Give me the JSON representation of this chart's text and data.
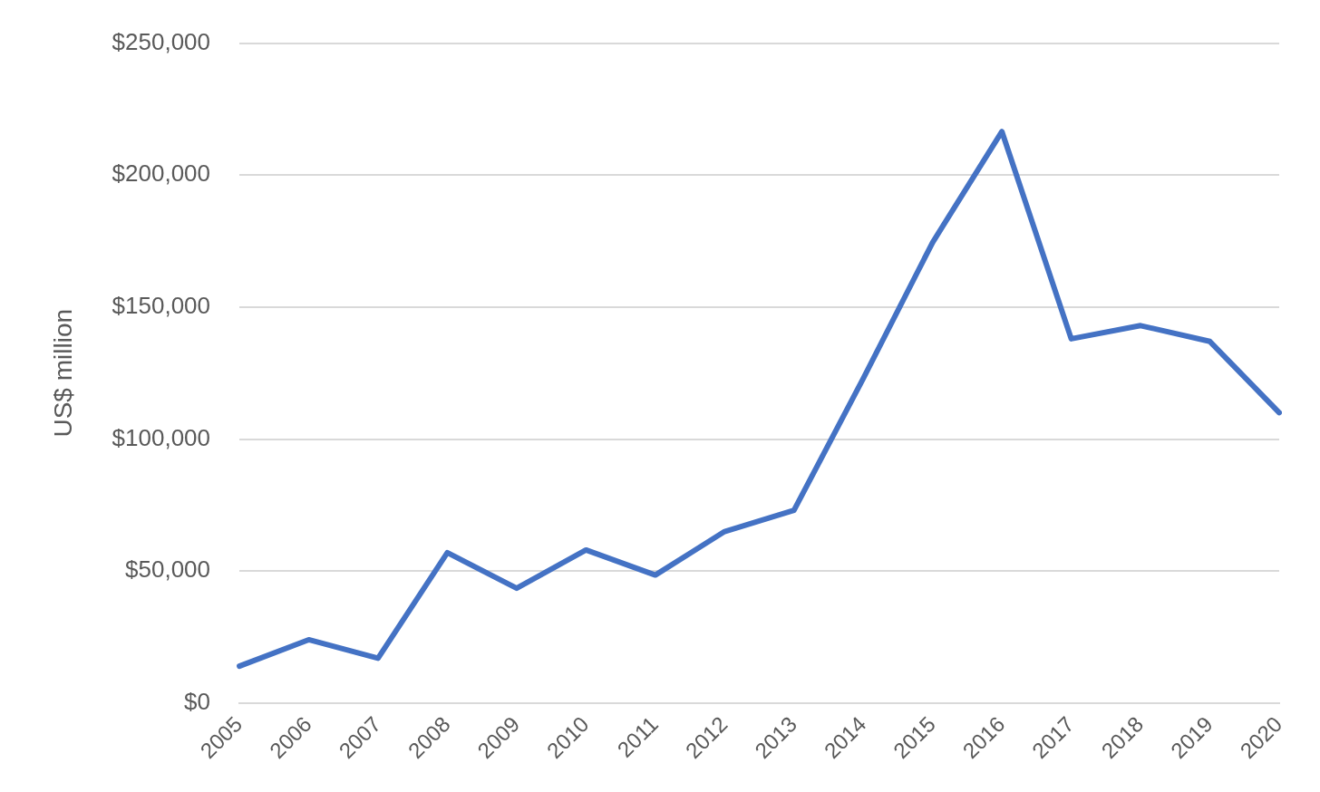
{
  "chart_data": {
    "type": "line",
    "ylabel": "US$ million",
    "categories": [
      "2005",
      "2006",
      "2007",
      "2008",
      "2009",
      "2010",
      "2011",
      "2012",
      "2013",
      "2014",
      "2015",
      "2016",
      "2017",
      "2018",
      "2019",
      "2020"
    ],
    "series": [
      {
        "color": "#4472c4",
        "values": [
          14000,
          24000,
          17000,
          57000,
          43500,
          58000,
          48500,
          65000,
          73000,
          123000,
          174500,
          216500,
          138000,
          143000,
          137000,
          110000
        ]
      }
    ],
    "ylim": [
      0,
      250000
    ],
    "yticks": [
      {
        "value": 0,
        "label": "$0"
      },
      {
        "value": 50000,
        "label": "$50,000"
      },
      {
        "value": 100000,
        "label": "$100,000"
      },
      {
        "value": 150000,
        "label": "$150,000"
      },
      {
        "value": 200000,
        "label": "$200,000"
      },
      {
        "value": 250000,
        "label": "$250,000"
      }
    ],
    "grid": "y",
    "legend": false,
    "marker": "none",
    "line_style": "solid"
  }
}
